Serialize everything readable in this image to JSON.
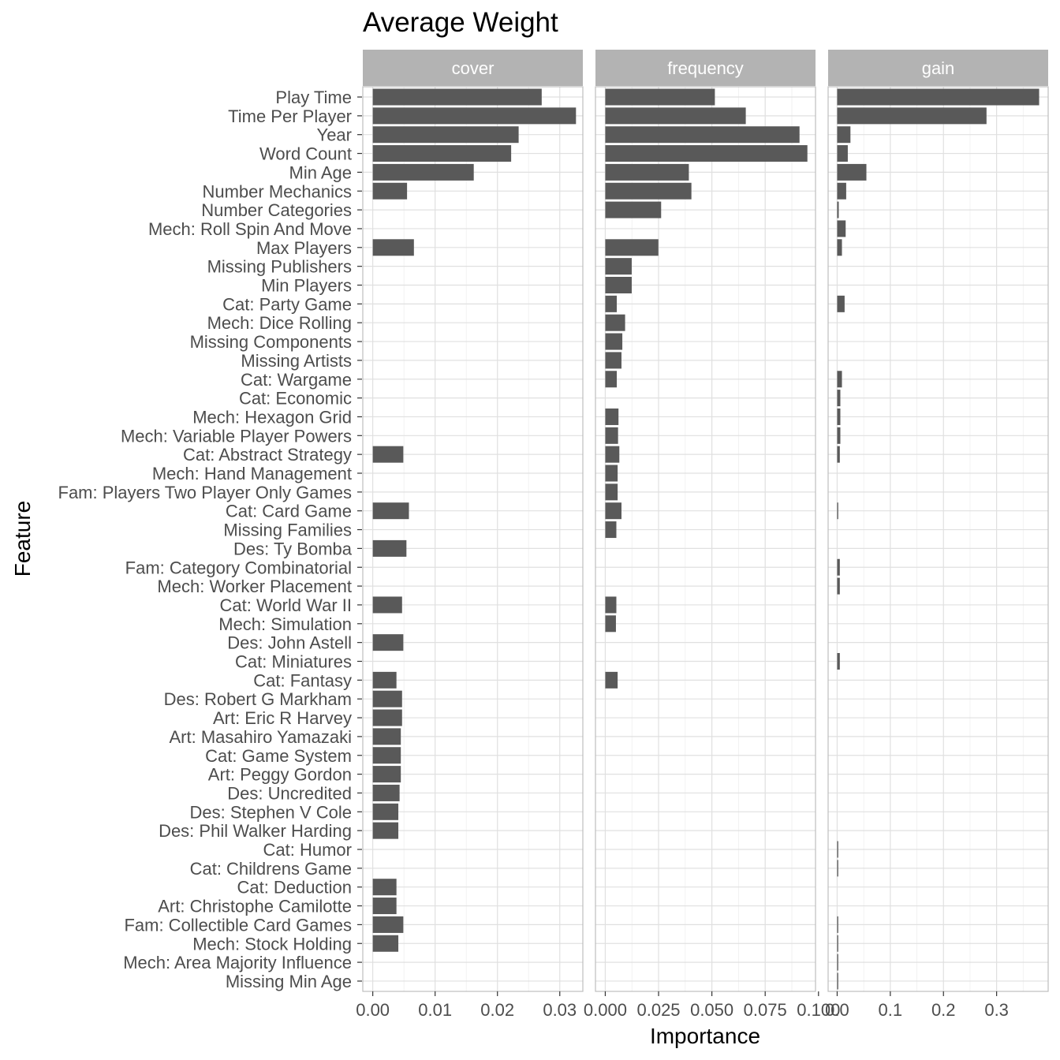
{
  "chart_data": {
    "type": "bar",
    "orientation": "horizontal",
    "title": "Average Weight",
    "xlabel": "Importance",
    "ylabel": "Feature",
    "bar_color": "#595959",
    "strip_color": "#b3b3b3",
    "categories": [
      "Play Time",
      "Time Per Player",
      "Year",
      "Word Count",
      "Min Age",
      "Number Mechanics",
      "Number Categories",
      "Mech: Roll Spin And Move",
      "Max Players",
      "Missing Publishers",
      "Min Players",
      "Cat: Party Game",
      "Mech: Dice Rolling",
      "Missing Components",
      "Missing Artists",
      "Cat: Wargame",
      "Cat: Economic",
      "Mech: Hexagon Grid",
      "Mech: Variable Player Powers",
      "Cat: Abstract Strategy",
      "Mech: Hand Management",
      "Fam: Players Two Player Only Games",
      "Cat: Card Game",
      "Missing Families",
      "Des: Ty Bomba",
      "Fam: Category Combinatorial",
      "Mech: Worker Placement",
      "Cat: World War II",
      "Mech: Simulation",
      "Des: John Astell",
      "Cat: Miniatures",
      "Cat: Fantasy",
      "Des: Robert G Markham",
      "Art: Eric R Harvey",
      "Art: Masahiro Yamazaki",
      "Cat: Game System",
      "Art: Peggy Gordon",
      "Des: Uncredited",
      "Des: Stephen V Cole",
      "Des: Phil Walker Harding",
      "Cat: Humor",
      "Cat: Childrens Game",
      "Cat: Deduction",
      "Art: Christophe Camilotte",
      "Fam: Collectible Card Games",
      "Mech: Stock Holding",
      "Mech: Area Majority Influence",
      "Missing Min Age"
    ],
    "panels": [
      {
        "name": "cover",
        "xlim": [
          -0.0016,
          0.0337
        ],
        "ticks": [
          0,
          0.01,
          0.02,
          0.03
        ],
        "tick_labels": [
          "0.00",
          "0.01",
          "0.02",
          "0.03"
        ],
        "values": [
          0.0271,
          0.0326,
          0.0234,
          0.0222,
          0.0162,
          0.0055,
          null,
          null,
          0.0066,
          null,
          null,
          null,
          null,
          null,
          null,
          null,
          null,
          null,
          null,
          0.0049,
          null,
          null,
          0.0058,
          null,
          0.0054,
          null,
          null,
          0.0047,
          null,
          0.0049,
          null,
          0.0038,
          0.0047,
          0.0047,
          0.0045,
          0.0045,
          0.0045,
          0.0043,
          0.0041,
          0.0041,
          null,
          null,
          0.0038,
          0.0038,
          0.0049,
          0.0041,
          null,
          null
        ]
      },
      {
        "name": "frequency",
        "xlim": [
          -0.0046,
          0.0986
        ],
        "ticks": [
          0,
          0.025,
          0.05,
          0.075,
          0.1
        ],
        "tick_labels": [
          "0.000",
          "0.025",
          "0.050",
          "0.075",
          "0.100"
        ],
        "values": [
          0.0514,
          0.0659,
          0.0911,
          0.0948,
          0.0392,
          0.0404,
          0.0262,
          null,
          0.0249,
          0.0124,
          0.0124,
          0.0054,
          0.0093,
          0.008,
          0.0076,
          0.0054,
          null,
          0.0062,
          0.006,
          0.0066,
          0.0058,
          0.0058,
          0.0076,
          0.0052,
          null,
          null,
          null,
          0.0052,
          0.005,
          null,
          null,
          0.0058,
          null,
          null,
          null,
          null,
          null,
          null,
          null,
          null,
          null,
          null,
          null,
          null,
          null,
          null,
          null,
          null
        ]
      },
      {
        "name": "gain",
        "xlim": [
          -0.017,
          0.397
        ],
        "ticks": [
          0,
          0.1,
          0.2,
          0.3
        ],
        "tick_labels": [
          "0.0",
          "0.1",
          "0.2",
          "0.3"
        ],
        "values": [
          0.38,
          0.281,
          0.025,
          0.02,
          0.055,
          0.017,
          0.003,
          0.016,
          0.009,
          null,
          null,
          0.014,
          null,
          null,
          null,
          0.009,
          0.006,
          0.006,
          0.006,
          0.005,
          null,
          null,
          0.002,
          null,
          null,
          0.005,
          0.005,
          null,
          null,
          null,
          0.005,
          null,
          null,
          null,
          null,
          null,
          null,
          null,
          null,
          null,
          0.002,
          0.002,
          null,
          null,
          0.002,
          0.002,
          0.002,
          0.002
        ]
      }
    ]
  }
}
